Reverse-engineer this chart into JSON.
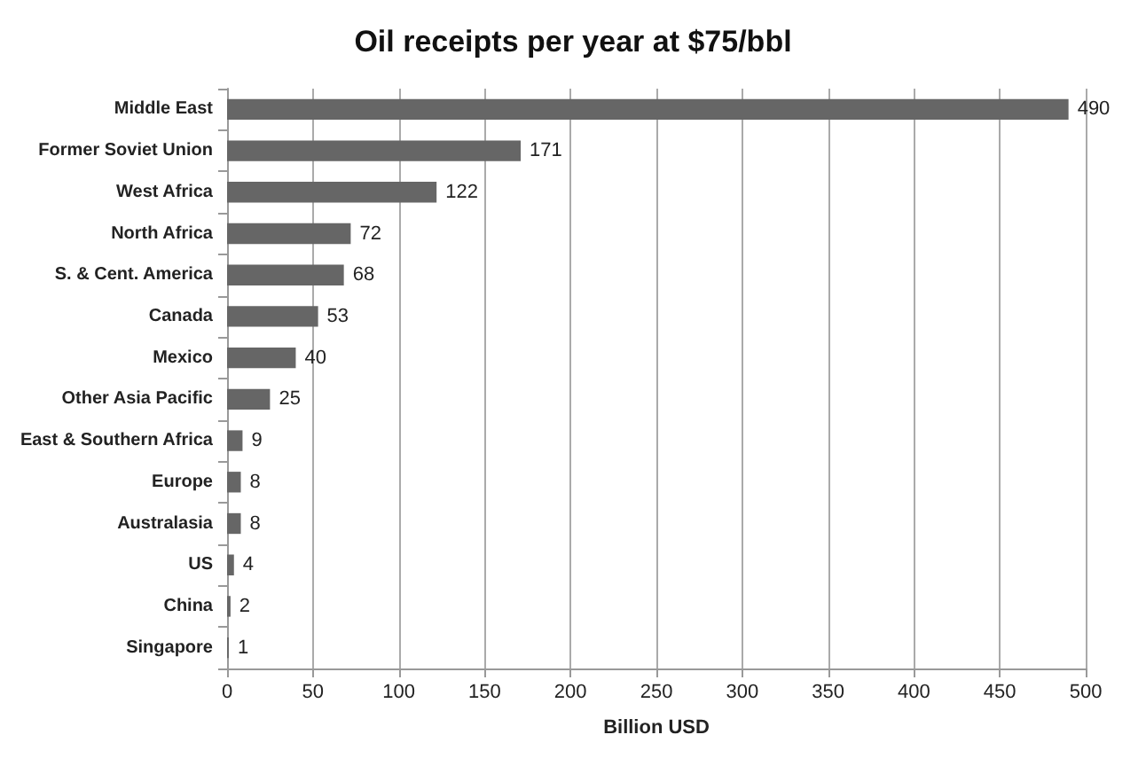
{
  "chart_data": {
    "type": "bar",
    "orientation": "horizontal",
    "title": "Oil receipts per year at $75/bbl",
    "xlabel": "Billion USD",
    "categories": [
      "Middle East",
      "Former Soviet Union",
      "West Africa",
      "North Africa",
      "S. & Cent. America",
      "Canada",
      "Mexico",
      "Other Asia Pacific",
      "East & Southern Africa",
      "Europe",
      "Australasia",
      "US",
      "China",
      "Singapore"
    ],
    "values": [
      490,
      171,
      122,
      72,
      68,
      53,
      40,
      25,
      9,
      8,
      8,
      4,
      2,
      1
    ],
    "color": "#666666",
    "xlim": [
      0,
      500
    ],
    "xticks": [
      0,
      50,
      100,
      150,
      200,
      250,
      300,
      350,
      400,
      450,
      500
    ],
    "grid": "x",
    "data_labels": true
  }
}
